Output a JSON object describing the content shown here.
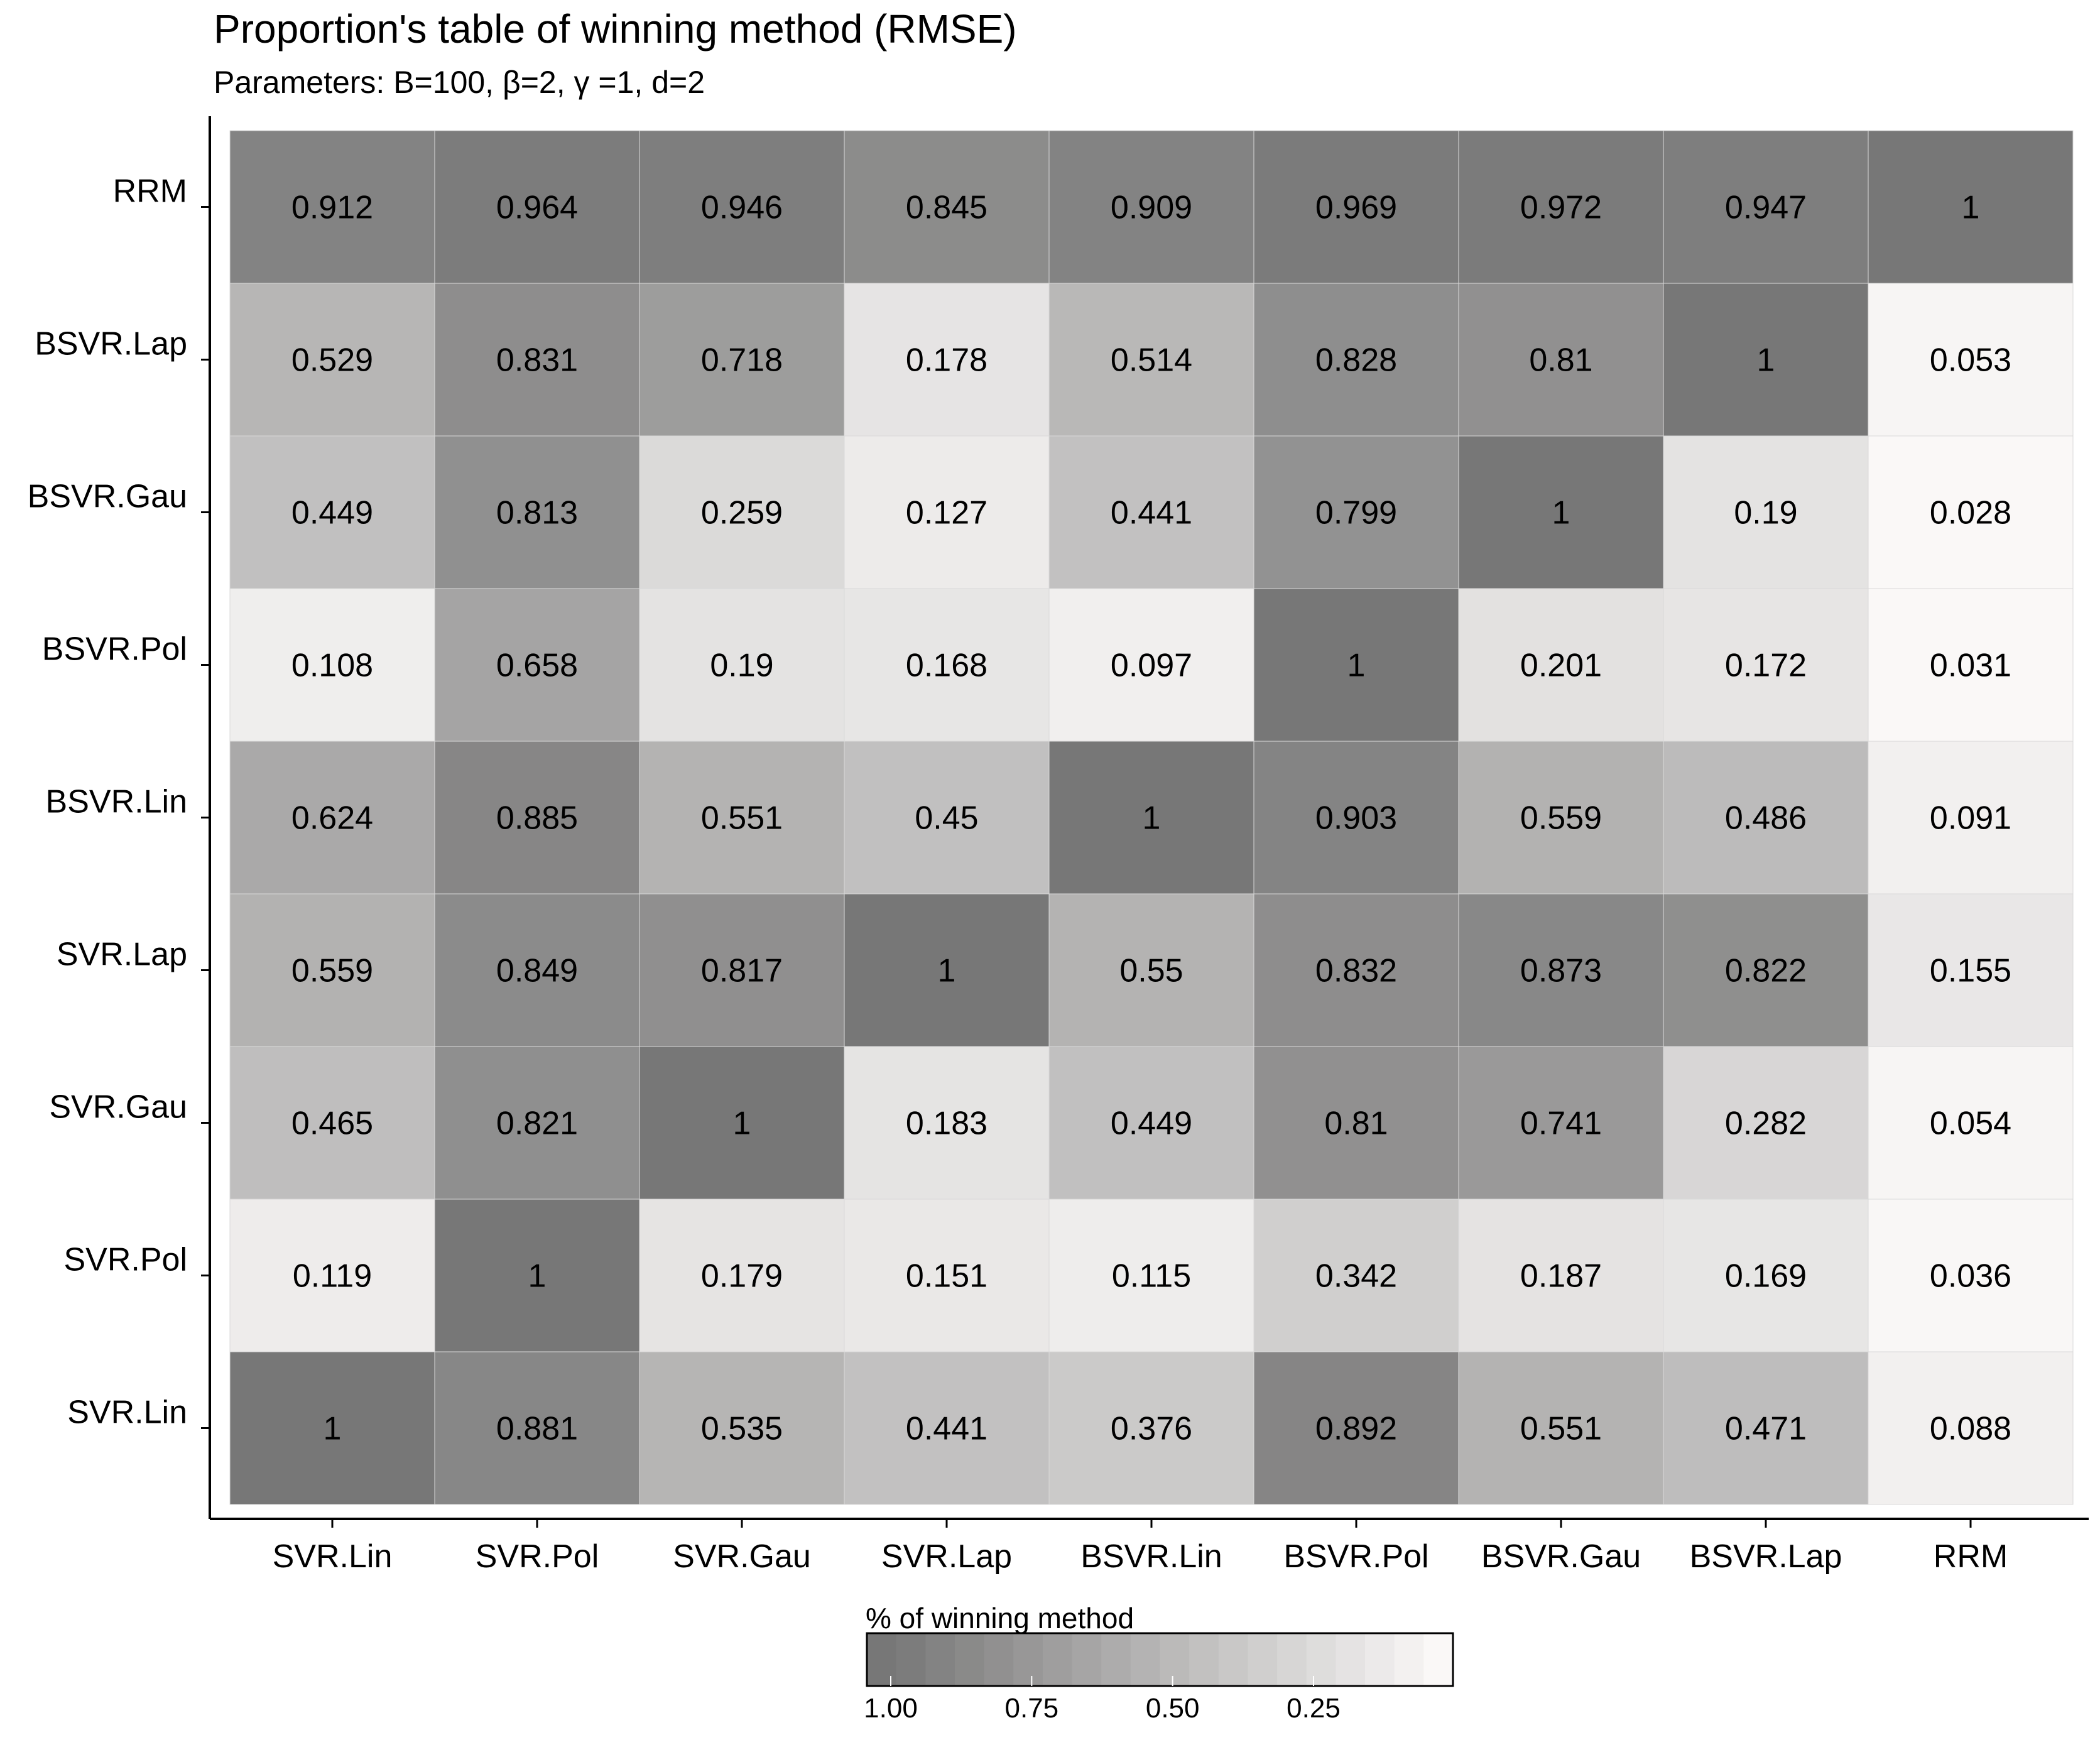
{
  "chart_data": {
    "type": "heatmap",
    "title": "Proportion's table of winning method (RMSE)",
    "subtitle": "Parameters: B=100,  β=2,  γ =1,  d=2",
    "x_categories": [
      "SVR.Lin",
      "SVR.Pol",
      "SVR.Gau",
      "SVR.Lap",
      "BSVR.Lin",
      "BSVR.Pol",
      "BSVR.Gau",
      "BSVR.Lap",
      "RRM"
    ],
    "y_categories_top_to_bottom": [
      "RRM",
      "BSVR.Lap",
      "BSVR.Gau",
      "BSVR.Pol",
      "BSVR.Lin",
      "SVR.Lap",
      "SVR.Gau",
      "SVR.Pol",
      "SVR.Lin"
    ],
    "values": [
      [
        "0.912",
        "0.964",
        "0.946",
        "0.845",
        "0.909",
        "0.969",
        "0.972",
        "0.947",
        "1"
      ],
      [
        "0.529",
        "0.831",
        "0.718",
        "0.178",
        "0.514",
        "0.828",
        "0.81",
        "1",
        "0.053"
      ],
      [
        "0.449",
        "0.813",
        "0.259",
        "0.127",
        "0.441",
        "0.799",
        "1",
        "0.19",
        "0.028"
      ],
      [
        "0.108",
        "0.658",
        "0.19",
        "0.168",
        "0.097",
        "1",
        "0.201",
        "0.172",
        "0.031"
      ],
      [
        "0.624",
        "0.885",
        "0.551",
        "0.45",
        "1",
        "0.903",
        "0.559",
        "0.486",
        "0.091"
      ],
      [
        "0.559",
        "0.849",
        "0.817",
        "1",
        "0.55",
        "0.832",
        "0.873",
        "0.822",
        "0.155"
      ],
      [
        "0.465",
        "0.821",
        "1",
        "0.183",
        "0.449",
        "0.81",
        "0.741",
        "0.282",
        "0.054"
      ],
      [
        "0.119",
        "1",
        "0.179",
        "0.151",
        "0.115",
        "0.342",
        "0.187",
        "0.169",
        "0.036"
      ],
      [
        "1",
        "0.881",
        "0.535",
        "0.441",
        "0.376",
        "0.892",
        "0.551",
        "0.471",
        "0.088"
      ]
    ],
    "color_scale": {
      "low_color": "#fefcfb",
      "high_color": "#777777",
      "range": [
        0,
        1
      ]
    },
    "legend": {
      "title": "% of winning method",
      "tick_labels": [
        "1.00",
        "0.75",
        "0.50",
        "0.25"
      ],
      "tick_values": [
        1.0,
        0.75,
        0.5,
        0.25
      ],
      "placement": "bottom-center"
    },
    "xlabel": "",
    "ylabel": ""
  }
}
